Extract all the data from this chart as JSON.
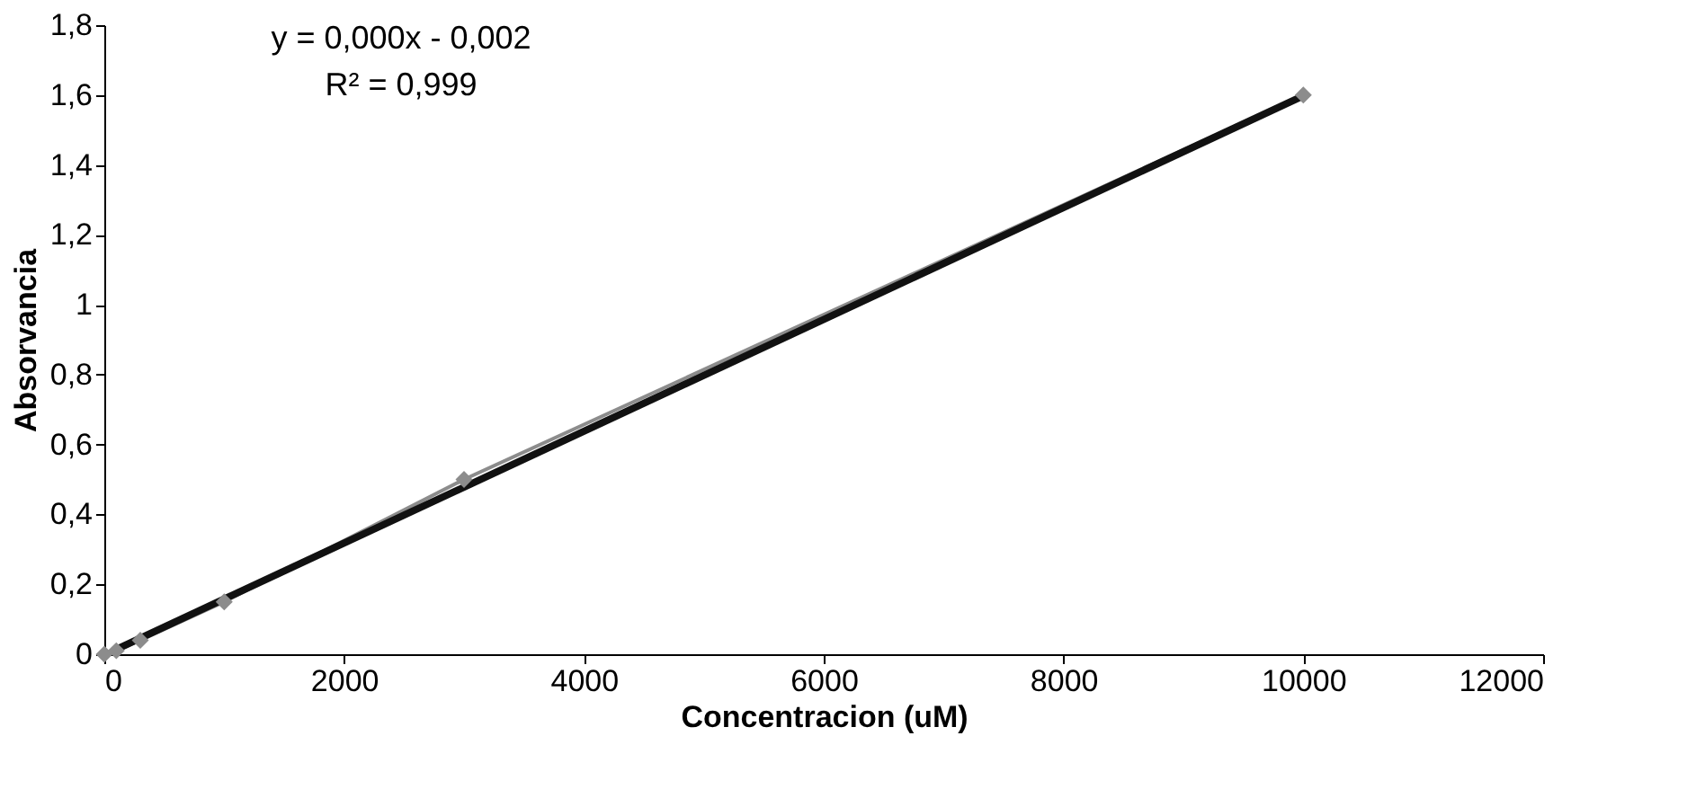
{
  "chart_data": {
    "type": "line",
    "xlabel": "Concentracion (uM)",
    "ylabel": "Absorvancia",
    "xlim": [
      0,
      12000
    ],
    "xticks": [
      0,
      2000,
      4000,
      6000,
      8000,
      10000,
      12000
    ],
    "ylim": [
      0,
      1.8
    ],
    "yticks": [
      0,
      {
        "value": 0.2,
        "label": "0,2"
      },
      {
        "value": 0.4,
        "label": "0,4"
      },
      {
        "value": 0.6,
        "label": "0,6"
      },
      {
        "value": 0.8,
        "label": "0,8"
      },
      1,
      {
        "value": 1.2,
        "label": "1,2"
      },
      {
        "value": 1.4,
        "label": "1,4"
      },
      {
        "value": 1.6,
        "label": "1,6"
      },
      {
        "value": 1.8,
        "label": "1,8"
      }
    ],
    "grid": false,
    "series": [
      {
        "marker": "diamond",
        "line_style": "solid",
        "color": "#8c8c8c",
        "x": [
          0,
          100,
          300,
          1000,
          3000,
          10000
        ],
        "values": [
          0,
          0.01,
          0.04,
          0.15,
          0.5,
          1.6
        ]
      },
      {
        "marker": "none",
        "line_style": "solid",
        "color": "#111111",
        "x": [
          100,
          10000
        ],
        "values": [
          0.014,
          1.598
        ]
      }
    ],
    "annotations": [
      "y = 0,000x - 0,002",
      "R² = 0,999"
    ]
  }
}
